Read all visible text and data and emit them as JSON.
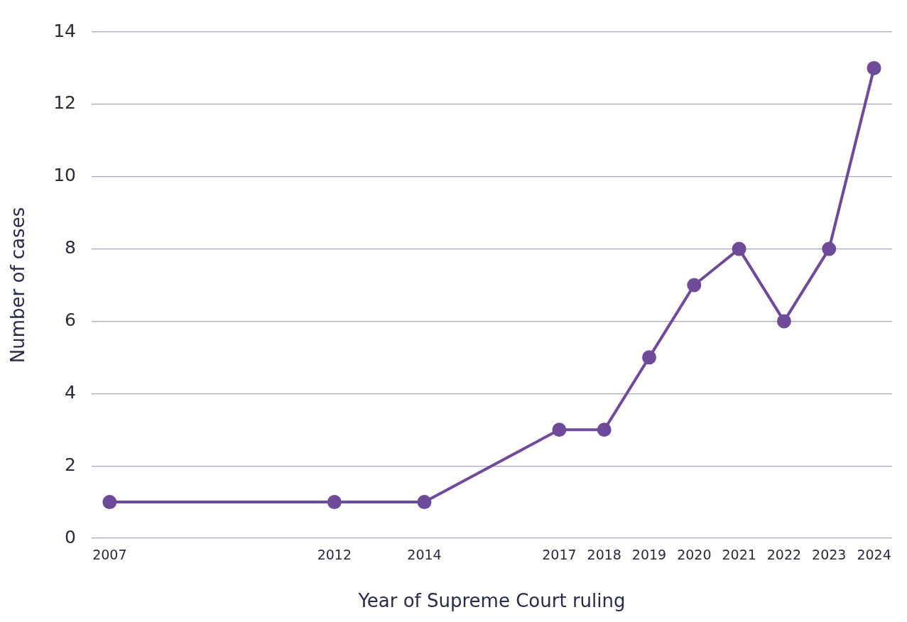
{
  "chart_data": {
    "type": "line",
    "xlabel": "Year of Supreme Court ruling",
    "ylabel": "Number of cases",
    "x": [
      2007,
      2012,
      2014,
      2017,
      2018,
      2019,
      2020,
      2021,
      2022,
      2023,
      2024
    ],
    "series": [
      {
        "color": "#6f4a9a",
        "values": [
          1,
          1,
          1,
          3,
          3,
          5,
          7,
          8,
          6,
          8,
          13
        ]
      }
    ],
    "xlim": [
      2006.6,
      2024.4
    ],
    "xticks": [
      2007,
      2012,
      2014,
      2017,
      2018,
      2019,
      2020,
      2021,
      2022,
      2023,
      2024
    ],
    "ylim": [
      0,
      14
    ],
    "yticks": [
      0,
      2,
      4,
      6,
      8,
      10,
      12,
      14
    ],
    "grid": "y",
    "legend": false,
    "marker": "circle",
    "line_style": "solid"
  }
}
